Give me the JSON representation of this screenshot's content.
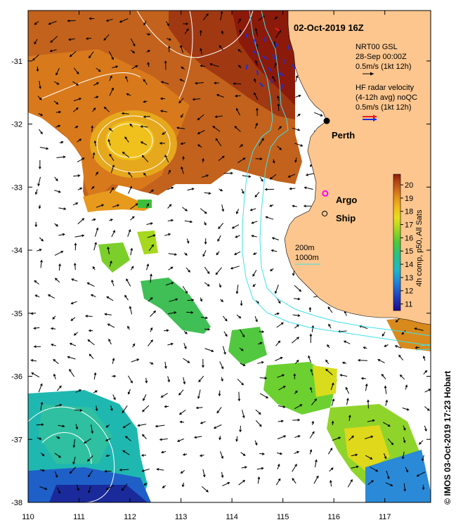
{
  "title": "02-Oct-2019 16Z",
  "credit": "© IMOS 03-Oct-2019 17:23 Hobart",
  "model_legend": {
    "line1": "NRT00 GSL",
    "line2": "28-Sep 00:00Z",
    "line3": "0.5m/s (1kt 12h)"
  },
  "radar_legend": {
    "line1": "HF radar velocity",
    "line2": "(4-12h avg) noQC",
    "line3": "0.5m/s (1kt 12h)"
  },
  "places": {
    "perth": "Perth",
    "argo": "Argo",
    "ship": "Ship"
  },
  "isobaths": {
    "shallow": "200m",
    "deep": "1000m"
  },
  "colorbar": {
    "label": "4h comp, p50, All Sats",
    "ticks": [
      "20",
      "19",
      "18",
      "17",
      "16",
      "15",
      "14",
      "13",
      "12",
      "11"
    ],
    "min": 10.5,
    "max": 20.8,
    "colors": [
      "#1a0a8a",
      "#1f3fbf",
      "#1d7fd8",
      "#1fb8c8",
      "#27c08a",
      "#4ec83a",
      "#a6d81f",
      "#e6e01a",
      "#f0b81c",
      "#e08a1a",
      "#c8621a",
      "#a83c10",
      "#8c1a0a"
    ]
  },
  "axes": {
    "lon_ticks": [
      "110",
      "111",
      "112",
      "113",
      "114",
      "115",
      "116",
      "117"
    ],
    "lat_ticks": [
      "-31",
      "-32",
      "-33",
      "-34",
      "-35",
      "-36",
      "-37",
      "-38"
    ],
    "lon_range": [
      110,
      117.9
    ],
    "lat_range": [
      -30.2,
      -38
    ]
  },
  "colors": {
    "land": "#fcc68e",
    "isobath": "#40e0e8",
    "ssh_contour": "#ffffff",
    "radar_arrow": "#1a2ee6",
    "radar_arrow_alt": "#e81e1e",
    "argo": "#ff00ff"
  },
  "points": {
    "perth": {
      "lon": 115.86,
      "lat": -31.95
    },
    "argo": {
      "lon": 115.83,
      "lat": -33.1
    },
    "ship": {
      "lon": 115.82,
      "lat": -33.42
    }
  }
}
